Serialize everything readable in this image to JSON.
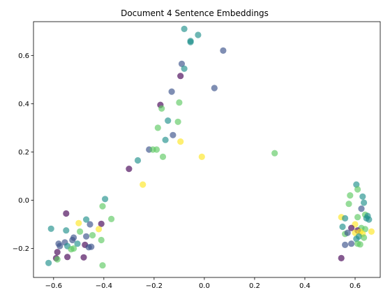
{
  "chart_data": {
    "type": "scatter",
    "title": "Document 4 Sentence Embeddings",
    "xlabel": "",
    "ylabel": "",
    "xlim": [
      -0.68,
      0.7
    ],
    "ylim": [
      -0.32,
      0.74
    ],
    "xticks": [
      -0.6,
      -0.4,
      -0.2,
      0.0,
      0.2,
      0.4,
      0.6
    ],
    "yticks": [
      -0.2,
      0.0,
      0.2,
      0.4,
      0.6
    ],
    "xtick_labels": [
      "−0.6",
      "−0.4",
      "−0.2",
      "0.0",
      "0.2",
      "0.4",
      "0.6"
    ],
    "ytick_labels": [
      "−0.2",
      "0.0",
      "0.2",
      "0.4",
      "0.6"
    ],
    "grid": false,
    "marker_alpha": 0.65,
    "colors": {
      "c1": "#440154",
      "c2": "#3b528b",
      "c3": "#21918c",
      "c4": "#5ec962",
      "c5": "#fde725"
    },
    "points": [
      {
        "x": -0.08,
        "y": 0.71,
        "c": "c3"
      },
      {
        "x": -0.055,
        "y": 0.655,
        "c": "c3"
      },
      {
        "x": -0.055,
        "y": 0.66,
        "c": "c3"
      },
      {
        "x": -0.025,
        "y": 0.685,
        "c": "c3"
      },
      {
        "x": 0.075,
        "y": 0.62,
        "c": "c2"
      },
      {
        "x": -0.09,
        "y": 0.565,
        "c": "c2"
      },
      {
        "x": -0.08,
        "y": 0.545,
        "c": "c3"
      },
      {
        "x": -0.095,
        "y": 0.515,
        "c": "c1"
      },
      {
        "x": 0.04,
        "y": 0.465,
        "c": "c2"
      },
      {
        "x": -0.13,
        "y": 0.45,
        "c": "c2"
      },
      {
        "x": -0.1,
        "y": 0.405,
        "c": "c4"
      },
      {
        "x": -0.175,
        "y": 0.395,
        "c": "c1"
      },
      {
        "x": -0.17,
        "y": 0.38,
        "c": "c4"
      },
      {
        "x": -0.145,
        "y": 0.33,
        "c": "c3"
      },
      {
        "x": -0.105,
        "y": 0.325,
        "c": "c4"
      },
      {
        "x": -0.185,
        "y": 0.3,
        "c": "c4"
      },
      {
        "x": -0.125,
        "y": 0.27,
        "c": "c2"
      },
      {
        "x": -0.155,
        "y": 0.25,
        "c": "c3"
      },
      {
        "x": -0.095,
        "y": 0.243,
        "c": "c5"
      },
      {
        "x": -0.22,
        "y": 0.21,
        "c": "c2"
      },
      {
        "x": -0.205,
        "y": 0.21,
        "c": "c4"
      },
      {
        "x": -0.19,
        "y": 0.21,
        "c": "c4"
      },
      {
        "x": -0.165,
        "y": 0.18,
        "c": "c4"
      },
      {
        "x": -0.01,
        "y": 0.18,
        "c": "c5"
      },
      {
        "x": 0.28,
        "y": 0.195,
        "c": "c4"
      },
      {
        "x": -0.265,
        "y": 0.165,
        "c": "c3"
      },
      {
        "x": -0.3,
        "y": 0.13,
        "c": "c1"
      },
      {
        "x": -0.245,
        "y": 0.065,
        "c": "c5"
      },
      {
        "x": -0.395,
        "y": 0.005,
        "c": "c3"
      },
      {
        "x": -0.405,
        "y": -0.025,
        "c": "c4"
      },
      {
        "x": -0.55,
        "y": -0.055,
        "c": "c1"
      },
      {
        "x": -0.47,
        "y": -0.08,
        "c": "c3"
      },
      {
        "x": -0.37,
        "y": -0.078,
        "c": "c4"
      },
      {
        "x": -0.5,
        "y": -0.095,
        "c": "c5"
      },
      {
        "x": -0.455,
        "y": -0.1,
        "c": "c2"
      },
      {
        "x": -0.41,
        "y": -0.098,
        "c": "c1"
      },
      {
        "x": -0.61,
        "y": -0.118,
        "c": "c3"
      },
      {
        "x": -0.55,
        "y": -0.125,
        "c": "c3"
      },
      {
        "x": -0.495,
        "y": -0.13,
        "c": "c4"
      },
      {
        "x": -0.42,
        "y": -0.12,
        "c": "c5"
      },
      {
        "x": -0.445,
        "y": -0.145,
        "c": "c4"
      },
      {
        "x": -0.47,
        "y": -0.15,
        "c": "c2"
      },
      {
        "x": -0.52,
        "y": -0.155,
        "c": "c2"
      },
      {
        "x": -0.525,
        "y": -0.165,
        "c": "c2"
      },
      {
        "x": -0.41,
        "y": -0.165,
        "c": "c4"
      },
      {
        "x": -0.58,
        "y": -0.18,
        "c": "c2"
      },
      {
        "x": -0.555,
        "y": -0.175,
        "c": "c2"
      },
      {
        "x": -0.545,
        "y": -0.19,
        "c": "c3"
      },
      {
        "x": -0.575,
        "y": -0.19,
        "c": "c2"
      },
      {
        "x": -0.52,
        "y": -0.2,
        "c": "c4"
      },
      {
        "x": -0.505,
        "y": -0.18,
        "c": "c3"
      },
      {
        "x": -0.475,
        "y": -0.185,
        "c": "c1"
      },
      {
        "x": -0.46,
        "y": -0.195,
        "c": "c2"
      },
      {
        "x": -0.45,
        "y": -0.193,
        "c": "c2"
      },
      {
        "x": -0.53,
        "y": -0.203,
        "c": "c4"
      },
      {
        "x": -0.585,
        "y": -0.215,
        "c": "c1"
      },
      {
        "x": -0.545,
        "y": -0.235,
        "c": "c1"
      },
      {
        "x": -0.48,
        "y": -0.237,
        "c": "c1"
      },
      {
        "x": -0.59,
        "y": -0.24,
        "c": "c1"
      },
      {
        "x": -0.585,
        "y": -0.245,
        "c": "c4"
      },
      {
        "x": -0.62,
        "y": -0.26,
        "c": "c3"
      },
      {
        "x": -0.405,
        "y": -0.27,
        "c": "c4"
      },
      {
        "x": 0.605,
        "y": 0.065,
        "c": "c3"
      },
      {
        "x": 0.61,
        "y": 0.045,
        "c": "c4"
      },
      {
        "x": 0.58,
        "y": 0.02,
        "c": "c4"
      },
      {
        "x": 0.63,
        "y": 0.015,
        "c": "c3"
      },
      {
        "x": 0.575,
        "y": -0.015,
        "c": "c4"
      },
      {
        "x": 0.635,
        "y": -0.01,
        "c": "c3"
      },
      {
        "x": 0.625,
        "y": -0.035,
        "c": "c2"
      },
      {
        "x": 0.545,
        "y": -0.07,
        "c": "c5"
      },
      {
        "x": 0.61,
        "y": -0.07,
        "c": "c4"
      },
      {
        "x": 0.64,
        "y": -0.06,
        "c": "c4"
      },
      {
        "x": 0.65,
        "y": -0.065,
        "c": "c3"
      },
      {
        "x": 0.645,
        "y": -0.075,
        "c": "c3"
      },
      {
        "x": 0.56,
        "y": -0.075,
        "c": "c3"
      },
      {
        "x": 0.655,
        "y": -0.08,
        "c": "c3"
      },
      {
        "x": 0.6,
        "y": -0.1,
        "c": "c5"
      },
      {
        "x": 0.55,
        "y": -0.11,
        "c": "c3"
      },
      {
        "x": 0.585,
        "y": -0.115,
        "c": "c1"
      },
      {
        "x": 0.625,
        "y": -0.115,
        "c": "c4"
      },
      {
        "x": 0.64,
        "y": -0.12,
        "c": "c4"
      },
      {
        "x": 0.61,
        "y": -0.125,
        "c": "c1"
      },
      {
        "x": 0.62,
        "y": -0.13,
        "c": "c5"
      },
      {
        "x": 0.665,
        "y": -0.13,
        "c": "c5"
      },
      {
        "x": 0.6,
        "y": -0.135,
        "c": "c5"
      },
      {
        "x": 0.56,
        "y": -0.14,
        "c": "c4"
      },
      {
        "x": 0.57,
        "y": -0.135,
        "c": "c2"
      },
      {
        "x": 0.63,
        "y": -0.14,
        "c": "c5"
      },
      {
        "x": 0.615,
        "y": -0.15,
        "c": "c3"
      },
      {
        "x": 0.635,
        "y": -0.155,
        "c": "c4"
      },
      {
        "x": 0.605,
        "y": -0.16,
        "c": "c3"
      },
      {
        "x": 0.585,
        "y": -0.18,
        "c": "c2"
      },
      {
        "x": 0.61,
        "y": -0.18,
        "c": "c4"
      },
      {
        "x": 0.62,
        "y": -0.183,
        "c": "c4"
      },
      {
        "x": 0.56,
        "y": -0.185,
        "c": "c2"
      },
      {
        "x": 0.545,
        "y": -0.24,
        "c": "c1"
      }
    ]
  }
}
